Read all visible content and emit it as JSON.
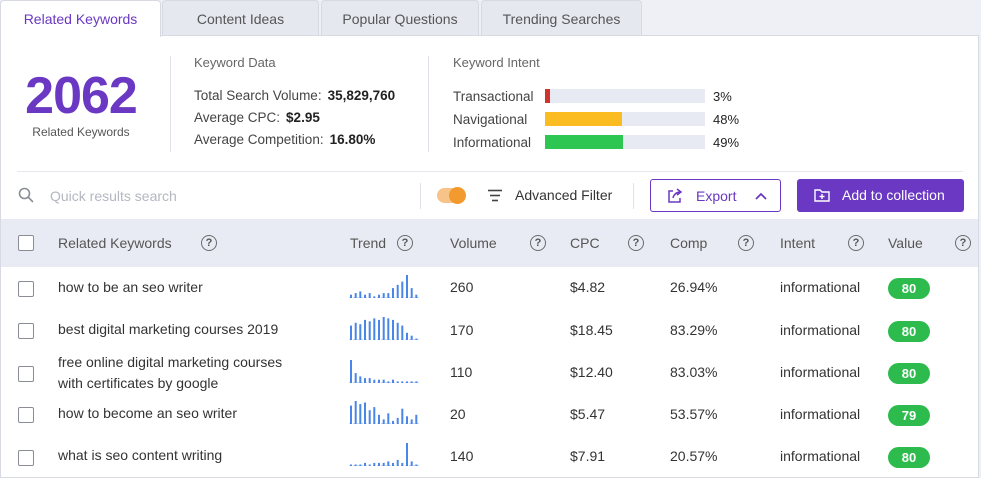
{
  "tabs": [
    {
      "label": "Related Keywords",
      "active": true
    },
    {
      "label": "Content Ideas",
      "active": false
    },
    {
      "label": "Popular Questions",
      "active": false
    },
    {
      "label": "Trending Searches",
      "active": false
    }
  ],
  "summary": {
    "count": "2062",
    "count_label": "Related Keywords"
  },
  "keyword_data": {
    "title": "Keyword Data",
    "total_volume_label": "Total Search Volume:",
    "total_volume": "35,829,760",
    "avg_cpc_label": "Average CPC:",
    "avg_cpc": "$2.95",
    "avg_comp_label": "Average Competition:",
    "avg_comp": "16.80%"
  },
  "keyword_intent": {
    "title": "Keyword Intent",
    "items": [
      {
        "label": "Transactional",
        "pct": "3%",
        "value": 3,
        "color": "#d0342c"
      },
      {
        "label": "Navigational",
        "pct": "48%",
        "value": 48,
        "color": "#fbbc22"
      },
      {
        "label": "Informational",
        "pct": "49%",
        "value": 49,
        "color": "#2dc653"
      }
    ]
  },
  "toolbar": {
    "search_placeholder": "Quick results search",
    "filter_toggle_on": true,
    "advanced_filter_label": "Advanced Filter",
    "export_label": "Export",
    "add_collection_label": "Add to collection"
  },
  "table": {
    "headers": {
      "keyword": "Related Keywords",
      "trend": "Trend",
      "volume": "Volume",
      "cpc": "CPC",
      "comp": "Comp",
      "intent": "Intent",
      "value": "Value"
    },
    "rows": [
      {
        "keyword": "how to be an seo writer",
        "trend": [
          2,
          3,
          4,
          2,
          3,
          1,
          2,
          3,
          3,
          6,
          8,
          10,
          14,
          6,
          2
        ],
        "volume": "260",
        "cpc": "$4.82",
        "comp": "26.94%",
        "intent": "informational",
        "value": "80"
      },
      {
        "keyword": "best digital marketing courses 2019",
        "trend": [
          10,
          12,
          11,
          14,
          13,
          15,
          14,
          16,
          15,
          14,
          12,
          10,
          5,
          3,
          1
        ],
        "volume": "170",
        "cpc": "$18.45",
        "comp": "83.29%",
        "intent": "informational",
        "value": "80"
      },
      {
        "keyword": "free online digital marketing courses with certificates by google",
        "trend": [
          14,
          6,
          4,
          3,
          3,
          2,
          2,
          2,
          1,
          2,
          1,
          1,
          1,
          1,
          1
        ],
        "volume": "110",
        "cpc": "$12.40",
        "comp": "83.03%",
        "intent": "informational",
        "value": "80"
      },
      {
        "keyword": "how to become an seo writer",
        "trend": [
          12,
          15,
          13,
          14,
          9,
          11,
          6,
          3,
          7,
          2,
          4,
          10,
          5,
          3,
          6
        ],
        "volume": "20",
        "cpc": "$5.47",
        "comp": "53.57%",
        "intent": "informational",
        "value": "79"
      },
      {
        "keyword": "what is seo content writing",
        "trend": [
          1,
          1,
          1,
          2,
          1,
          2,
          2,
          2,
          3,
          2,
          4,
          2,
          15,
          3,
          1
        ],
        "volume": "140",
        "cpc": "$7.91",
        "comp": "20.57%",
        "intent": "informational",
        "value": "80"
      }
    ]
  },
  "colors": {
    "accent": "#6a38c2",
    "trend_bar": "#4a86e8",
    "value_badge": "#2dbb4e"
  }
}
